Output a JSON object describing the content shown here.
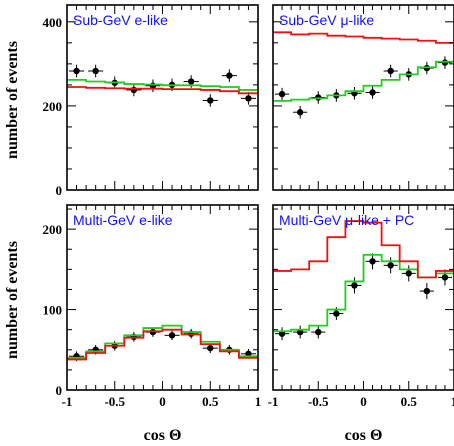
{
  "figure": {
    "ylabel": "number of events",
    "xlabel": "cos Θ"
  },
  "colors": {
    "data": "#000000",
    "model_a": "#22cc22",
    "model_b": "#ee1111",
    "title": "#1010ff"
  },
  "chart_data": [
    {
      "type": "line",
      "title": "Sub-GeV e-like",
      "xlim": [
        -1,
        1
      ],
      "ylim": [
        0,
        440
      ],
      "yticks": [
        0,
        200,
        400
      ],
      "xticks": [],
      "show_ylabel": true,
      "show_xlabel": false,
      "bin_edges": [
        -1,
        -0.8,
        -0.6,
        -0.4,
        -0.2,
        0,
        0.2,
        0.4,
        0.6,
        0.8,
        1
      ],
      "series": [
        {
          "style": "points",
          "color_key": "data",
          "values": [
            283,
            283,
            255,
            238,
            248,
            250,
            258,
            213,
            272,
            218
          ],
          "errors": [
            15,
            15,
            15,
            15,
            15,
            15,
            15,
            15,
            15,
            15
          ]
        },
        {
          "style": "step",
          "color_key": "model_a",
          "values": [
            262,
            258,
            256,
            252,
            251,
            249,
            249,
            247,
            245,
            238
          ]
        },
        {
          "style": "step",
          "color_key": "model_b",
          "values": [
            245,
            243,
            242,
            241,
            241,
            240,
            240,
            238,
            235,
            230
          ]
        }
      ]
    },
    {
      "type": "line",
      "title": "Sub-GeV μ-like",
      "xlim": [
        -1,
        1
      ],
      "ylim": [
        0,
        440
      ],
      "yticks": [
        0,
        200,
        400
      ],
      "xticks": [],
      "show_ylabel": false,
      "show_xlabel": false,
      "bin_edges": [
        -1,
        -0.8,
        -0.6,
        -0.4,
        -0.2,
        0,
        0.2,
        0.4,
        0.6,
        0.8,
        1
      ],
      "series": [
        {
          "style": "points",
          "color_key": "data",
          "values": [
            228,
            185,
            220,
            225,
            230,
            232,
            283,
            275,
            290,
            303
          ],
          "errors": [
            15,
            15,
            15,
            15,
            15,
            15,
            15,
            15,
            15,
            15
          ]
        },
        {
          "style": "step",
          "color_key": "model_a",
          "values": [
            212,
            215,
            218,
            225,
            235,
            248,
            262,
            275,
            292,
            305
          ]
        },
        {
          "style": "step",
          "color_key": "model_b",
          "values": [
            375,
            370,
            372,
            367,
            365,
            362,
            360,
            358,
            355,
            350
          ]
        }
      ]
    },
    {
      "type": "line",
      "title": "Multi-GeV e-like",
      "xlim": [
        -1,
        1
      ],
      "ylim": [
        0,
        230
      ],
      "yticks": [
        0,
        100,
        200
      ],
      "xticks": [
        "-1",
        "-0.5",
        "0",
        "0.5",
        "1"
      ],
      "xtick_values": [
        -1,
        -0.5,
        0,
        0.5,
        1
      ],
      "show_ylabel": true,
      "show_xlabel": true,
      "bin_edges": [
        -1,
        -0.8,
        -0.6,
        -0.4,
        -0.2,
        0,
        0.2,
        0.4,
        0.6,
        0.8,
        1
      ],
      "series": [
        {
          "style": "points",
          "color_key": "data",
          "values": [
            42,
            50,
            55,
            66,
            72,
            68,
            70,
            52,
            50,
            45
          ],
          "errors": [
            6,
            6,
            6,
            6,
            6,
            6,
            6,
            6,
            6,
            6
          ]
        },
        {
          "style": "step",
          "color_key": "model_a",
          "values": [
            40,
            48,
            58,
            68,
            77,
            80,
            72,
            60,
            50,
            42
          ]
        },
        {
          "style": "step",
          "color_key": "model_b",
          "values": [
            38,
            46,
            55,
            65,
            73,
            75,
            69,
            57,
            48,
            40
          ]
        }
      ]
    },
    {
      "type": "line",
      "title": "Multi-GeV μ-like + PC",
      "xlim": [
        -1,
        1
      ],
      "ylim": [
        0,
        230
      ],
      "yticks": [
        0,
        100,
        200
      ],
      "xticks": [
        "-1",
        "-0.5",
        "0",
        "0.5",
        "1"
      ],
      "xtick_values": [
        -1,
        -0.5,
        0,
        0.5,
        1
      ],
      "show_ylabel": false,
      "show_xlabel": true,
      "bin_edges": [
        -1,
        -0.8,
        -0.6,
        -0.4,
        -0.2,
        0,
        0.2,
        0.4,
        0.6,
        0.8,
        1
      ],
      "series": [
        {
          "style": "points",
          "color_key": "data",
          "values": [
            70,
            72,
            72,
            95,
            130,
            160,
            155,
            145,
            123,
            140
          ],
          "errors": [
            8,
            8,
            8,
            8,
            10,
            10,
            10,
            10,
            10,
            10
          ]
        },
        {
          "style": "step",
          "color_key": "model_a",
          "values": [
            73,
            75,
            80,
            100,
            135,
            168,
            160,
            150,
            140,
            145
          ]
        },
        {
          "style": "step",
          "color_key": "model_b",
          "values": [
            148,
            150,
            160,
            190,
            210,
            208,
            180,
            160,
            140,
            148
          ]
        }
      ]
    }
  ]
}
